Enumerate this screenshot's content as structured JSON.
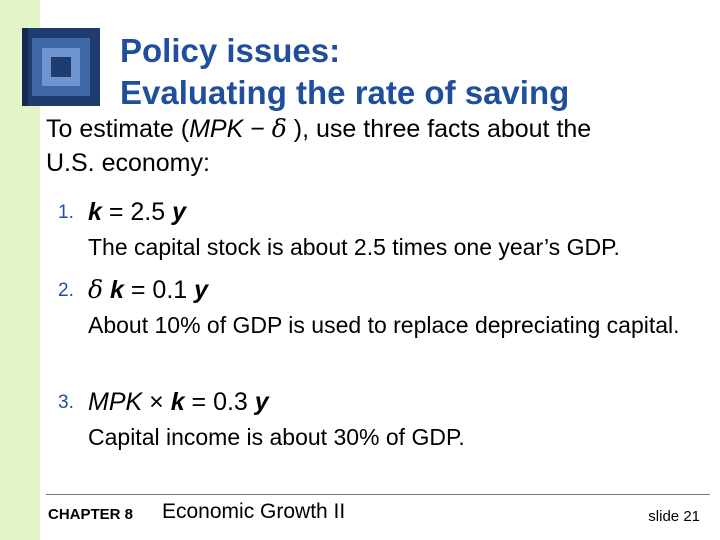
{
  "title": {
    "line1": "Policy issues:",
    "line2": "Evaluating the rate of saving"
  },
  "intro": {
    "prefix": "To estimate (",
    "mpk": "MPK",
    "minus": " − ",
    "delta": "δ",
    "suffix": " ), use three facts about the",
    "line2": "U.S. economy:"
  },
  "facts": [
    {
      "number": "1.",
      "k": "k",
      "eq": " = 2.5 ",
      "y": "y",
      "description": "The capital stock is about 2.5 times one year’s GDP."
    },
    {
      "number": "2.",
      "delta": "δ",
      "k": " k",
      "eq": " = 0.1 ",
      "y": "y",
      "description": "About 10% of GDP is used to replace depreciating capital."
    },
    {
      "number": "3.",
      "mpk": "MPK",
      "times": " × ",
      "k": "k",
      "eq": "  = 0.3 ",
      "y": "y",
      "description": "Capital income is about 30% of GDP."
    }
  ],
  "footer": {
    "chapter": "CHAPTER 8",
    "chapter_title": "Economic Growth II",
    "slide": "slide 21"
  },
  "colors": {
    "title": "#1f4e9c",
    "left_band": "#e3f4c6",
    "logo": "#1f3c6e"
  },
  "icons": {
    "logo": "nested-squares-logo-icon"
  }
}
